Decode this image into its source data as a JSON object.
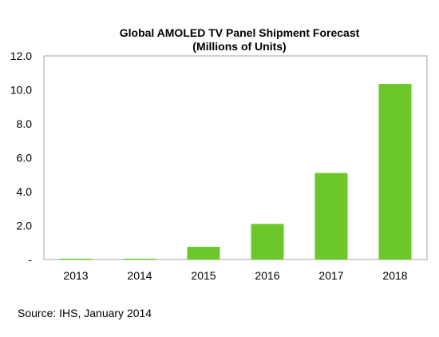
{
  "chart_data": {
    "type": "bar",
    "title": "Global AMOLED TV Panel Shipment Forecast",
    "subtitle": "(Millions of Units)",
    "xlabel": "",
    "ylabel": "",
    "categories": [
      "2013",
      "2014",
      "2015",
      "2016",
      "2017",
      "2018"
    ],
    "values": [
      0.05,
      0.05,
      0.75,
      2.1,
      5.1,
      10.35
    ],
    "ylim": [
      0,
      12
    ],
    "y_ticks": [
      0,
      2,
      4,
      6,
      8,
      10,
      12
    ],
    "y_tick_labels": [
      "-",
      "2.0",
      "4.0",
      "6.0",
      "8.0",
      "10.0",
      "12.0"
    ],
    "grid": false,
    "legend": "none",
    "bar_color": "#6cc82a"
  },
  "footer": {
    "source": "Source: IHS, January 2014"
  }
}
